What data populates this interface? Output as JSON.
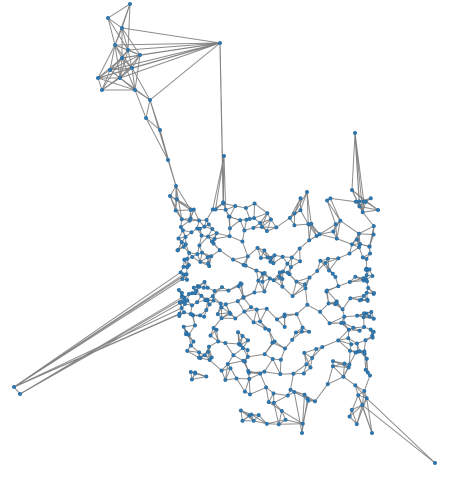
{
  "graph": {
    "edge_color": "#808080",
    "node_color": "#2f78b0",
    "node_edge_color": "#1f5f91"
  }
}
